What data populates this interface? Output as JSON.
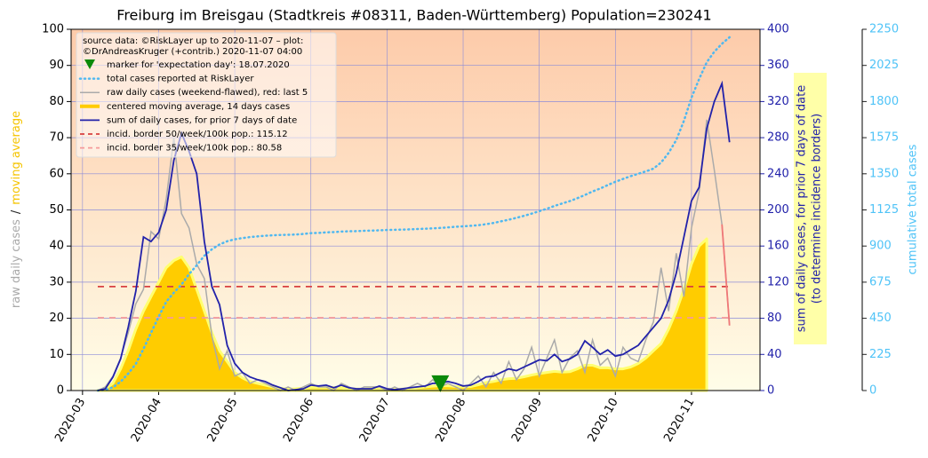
{
  "chart_data": {
    "type": "line",
    "title": "Freiburg im Breisgau (Stadtkreis #08311, Baden-Württemberg) Population=230241",
    "legend_header": [
      "source data: ©RiskLayer up to 2020-11-07 – plot:",
      "©DrAndreasKruger (+contrib.) 2020-11-07 04:00"
    ],
    "ylabel": [
      "raw daily cases",
      "/",
      "moving average"
    ],
    "ylabel_colors": [
      "#aaaaaa",
      "#222222",
      "#f5c400"
    ],
    "y2label": [
      "sum of daily cases, for prior 7 days of date",
      "(to determine incidence borders)"
    ],
    "y2label_color": "#2222aa",
    "y2label_box": "#ffffa8",
    "y3label": "cumulative total cases",
    "y3label_color": "#4fc3f7",
    "xlim": [
      2.85,
      11.9
    ],
    "xticks": [
      {
        "value": 3,
        "label": "2020-03"
      },
      {
        "value": 4,
        "label": "2020-04"
      },
      {
        "value": 5,
        "label": "2020-05"
      },
      {
        "value": 6,
        "label": "2020-06"
      },
      {
        "value": 7,
        "label": "2020-07"
      },
      {
        "value": 8,
        "label": "2020-08"
      },
      {
        "value": 9,
        "label": "2020-09"
      },
      {
        "value": 10,
        "label": "2020-10"
      },
      {
        "value": 11,
        "label": "2020-11"
      }
    ],
    "ylim": [
      0,
      100
    ],
    "yticks": [
      0,
      10,
      20,
      30,
      40,
      50,
      60,
      70,
      80,
      90,
      100
    ],
    "y2lim": [
      0,
      400
    ],
    "y2ticks": [
      0,
      40,
      80,
      120,
      160,
      200,
      240,
      280,
      320,
      360,
      400
    ],
    "y3lim": [
      0,
      2250
    ],
    "y3ticks": [
      0,
      225,
      450,
      675,
      900,
      1125,
      1350,
      1575,
      1800,
      2025,
      2250
    ],
    "grid": true,
    "background": [
      "#fdcbaa",
      "#fffde8"
    ],
    "x": [
      3.2,
      3.3,
      3.4,
      3.5,
      3.6,
      3.7,
      3.8,
      3.9,
      4.0,
      4.1,
      4.2,
      4.3,
      4.4,
      4.5,
      4.6,
      4.7,
      4.8,
      4.9,
      5.0,
      5.1,
      5.2,
      5.3,
      5.4,
      5.5,
      5.6,
      5.7,
      5.8,
      5.9,
      6.0,
      6.1,
      6.2,
      6.3,
      6.4,
      6.5,
      6.6,
      6.7,
      6.8,
      6.9,
      7.0,
      7.1,
      7.2,
      7.3,
      7.4,
      7.5,
      7.6,
      7.7,
      7.8,
      7.9,
      8.0,
      8.1,
      8.2,
      8.3,
      8.4,
      8.5,
      8.6,
      8.7,
      8.8,
      8.9,
      9.0,
      9.1,
      9.2,
      9.3,
      9.4,
      9.5,
      9.6,
      9.7,
      9.8,
      9.9,
      10.0,
      10.1,
      10.2,
      10.3,
      10.4,
      10.5,
      10.6,
      10.7,
      10.8,
      10.9,
      11.0,
      11.1,
      11.2,
      11.3,
      11.4,
      11.5
    ],
    "series": [
      {
        "name": "marker for 'expectation day': 18.07.2020",
        "style": "marker",
        "color": "#0a8a0a",
        "x": [
          7.7
        ],
        "values": [
          1.5
        ]
      },
      {
        "name": "total cases reported at RiskLayer",
        "style": "dotted",
        "axis": "y3",
        "color": "#4fb8f0",
        "values": [
          0,
          5,
          20,
          55,
          105,
          166,
          260,
          360,
          460,
          553,
          610,
          660,
          725,
          780,
          840,
          880,
          910,
          930,
          942,
          950,
          956,
          960,
          964,
          967,
          969,
          970,
          972,
          975,
          980,
          982,
          985,
          987,
          990,
          992,
          993,
          995,
          996,
          998,
          1000,
          1001,
          1002,
          1004,
          1006,
          1008,
          1010,
          1013,
          1016,
          1020,
          1023,
          1026,
          1030,
          1036,
          1044,
          1054,
          1064,
          1076,
          1088,
          1102,
          1117,
          1132,
          1150,
          1165,
          1180,
          1198,
          1218,
          1240,
          1258,
          1280,
          1300,
          1318,
          1335,
          1350,
          1365,
          1382,
          1420,
          1480,
          1560,
          1680,
          1824,
          1940,
          2045,
          2110,
          2160,
          2200
        ]
      },
      {
        "name": "raw daily cases (weekend-flawed), red: last 5",
        "style": "thin",
        "color": "#aaaaaa",
        "recent_color": "#f07878",
        "values": [
          0,
          1,
          4,
          9,
          16,
          24,
          28,
          44,
          42,
          53,
          70,
          49,
          45,
          35,
          31,
          15,
          6,
          11,
          4,
          5,
          2,
          3,
          2,
          1,
          0,
          1,
          0,
          1,
          2,
          1,
          1,
          0,
          2,
          1,
          0,
          1,
          1,
          1,
          0,
          1,
          0,
          1,
          2,
          1,
          3,
          1,
          2,
          1,
          0,
          2,
          4,
          1,
          5,
          2,
          8,
          3,
          6,
          12,
          4,
          9,
          14,
          5,
          9,
          11,
          5,
          14,
          7,
          9,
          4,
          12,
          9,
          8,
          14,
          19,
          34,
          22,
          38,
          26,
          45,
          55,
          75,
          61,
          46,
          18
        ]
      },
      {
        "name": "centered moving average, 14 days cases",
        "style": "area",
        "color": "#ffcc00",
        "edge_color": "#ffff70",
        "values": [
          0,
          0.5,
          2,
          6,
          11,
          17,
          22,
          26,
          30,
          34,
          36,
          37,
          34,
          28,
          22,
          16,
          11,
          8,
          5,
          3.5,
          2.5,
          2,
          1.5,
          1,
          0.6,
          0.4,
          0.5,
          0.7,
          0.9,
          0.9,
          0.9,
          0.8,
          0.8,
          0.5,
          0.4,
          0.4,
          0.5,
          0.6,
          0.4,
          0.3,
          0.4,
          0.6,
          0.8,
          1,
          1.2,
          1.3,
          1.3,
          1.1,
          1,
          1.1,
          1.6,
          2.2,
          2.5,
          3,
          3.3,
          3.4,
          3.8,
          4.3,
          4.7,
          5,
          5.3,
          5.1,
          5.2,
          6,
          7,
          7,
          6.3,
          6.3,
          6,
          6,
          6.5,
          7.5,
          9,
          11,
          13,
          17,
          22,
          28,
          35,
          40,
          42,
          null,
          null,
          null
        ]
      },
      {
        "name": "sum of daily cases, for prior 7 days of date",
        "style": "line",
        "axis": "y2",
        "color": "#2222aa",
        "values": [
          0,
          2,
          15,
          35,
          70,
          110,
          170,
          165,
          175,
          200,
          255,
          285,
          265,
          240,
          165,
          115,
          95,
          50,
          30,
          20,
          15,
          12,
          10,
          6,
          3,
          0,
          1,
          2,
          6,
          5,
          6,
          3,
          6,
          3,
          2,
          2,
          2,
          5,
          2,
          1,
          2,
          3,
          4,
          5,
          8,
          8,
          10,
          8,
          5,
          6,
          10,
          15,
          16,
          20,
          24,
          22,
          26,
          30,
          34,
          33,
          40,
          32,
          35,
          40,
          55,
          48,
          40,
          45,
          38,
          40,
          45,
          50,
          60,
          70,
          80,
          100,
          130,
          170,
          210,
          225,
          290,
          320,
          340,
          275
        ]
      },
      {
        "name": "incid. border 50/week/100k pop.: 115.12",
        "style": "dashed",
        "axis": "y2",
        "color": "#d84040",
        "value": 115.12
      },
      {
        "name": "incid. border 35/week/100k pop.: 80.58",
        "style": "dashed",
        "axis": "y2",
        "color": "#f59a9a",
        "value": 80.58
      }
    ]
  }
}
